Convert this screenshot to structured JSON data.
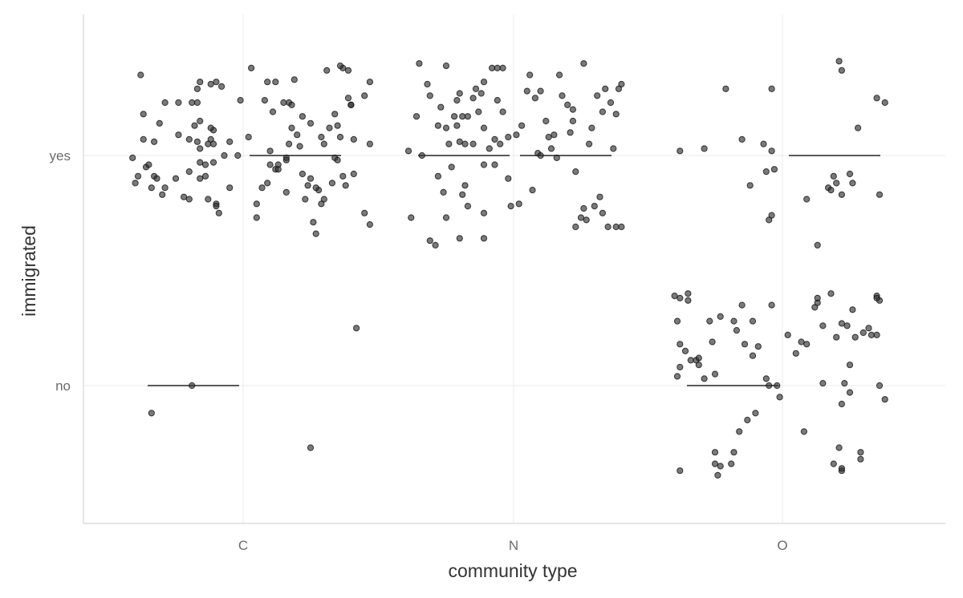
{
  "chart_data": {
    "type": "scatter",
    "subtype": "jittered strip plot with segment markers",
    "title": "",
    "xlabel": "community type",
    "ylabel": "immigrated",
    "categories": [
      "C",
      "N",
      "O"
    ],
    "y_levels": [
      "no",
      "yes"
    ],
    "grid": true,
    "legend": "none",
    "point_color": "#333333",
    "point_opacity": 0.65,
    "line_color": "#222222",
    "segments": [
      {
        "category": "C",
        "y": "no",
        "side": "left"
      },
      {
        "category": "C",
        "y": "yes",
        "side": "right"
      },
      {
        "category": "N",
        "y": "yes",
        "side": "left"
      },
      {
        "category": "N",
        "y": "yes",
        "side": "right"
      },
      {
        "category": "O",
        "y": "no",
        "side": "left"
      },
      {
        "category": "O",
        "y": "yes",
        "side": "right"
      }
    ],
    "points": [
      [
        "C",
        -0.38,
        1.35
      ],
      [
        "C",
        -0.29,
        1.23
      ],
      [
        "C",
        -0.37,
        1.18
      ],
      [
        "C",
        -0.31,
        1.14
      ],
      [
        "C",
        -0.37,
        1.07
      ],
      [
        "C",
        -0.33,
        1.06
      ],
      [
        "C",
        -0.41,
        0.99
      ],
      [
        "C",
        -0.36,
        0.95
      ],
      [
        "C",
        -0.33,
        0.91
      ],
      [
        "C",
        -0.39,
        0.91
      ],
      [
        "C",
        -0.32,
        0.9
      ],
      [
        "C",
        -0.34,
        0.86
      ],
      [
        "C",
        -0.3,
        0.83
      ],
      [
        "C",
        -0.4,
        0.88
      ],
      [
        "C",
        -0.35,
        0.96
      ],
      [
        "C",
        -0.24,
        1.23
      ],
      [
        "C",
        -0.2,
        1.07
      ],
      [
        "C",
        -0.17,
        1.06
      ],
      [
        "C",
        -0.24,
        1.09
      ],
      [
        "C",
        -0.29,
        0.86
      ],
      [
        "C",
        -0.22,
        0.82
      ],
      [
        "C",
        -0.25,
        0.9
      ],
      [
        "C",
        -0.2,
        0.93
      ],
      [
        "C",
        -0.2,
        0.81
      ],
      [
        "C",
        -0.16,
        0.9
      ],
      [
        "C",
        -0.14,
        0.91
      ],
      [
        "C",
        -0.16,
        0.97
      ],
      [
        "C",
        -0.16,
        1.03
      ],
      [
        "C",
        -0.13,
        1.05
      ],
      [
        "C",
        -0.18,
        1.13
      ],
      [
        "C",
        -0.17,
        1.23
      ],
      [
        "C",
        -0.16,
        1.32
      ],
      [
        "C",
        -0.17,
        1.29
      ],
      [
        "C",
        -0.12,
        1.31
      ],
      [
        "C",
        -0.1,
        1.32
      ],
      [
        "C",
        -0.08,
        1.3
      ],
      [
        "C",
        -0.11,
        1.11
      ],
      [
        "C",
        -0.12,
        1.07
      ],
      [
        "C",
        -0.11,
        1.05
      ],
      [
        "C",
        -0.11,
        0.97
      ],
      [
        "C",
        -0.14,
        0.96
      ],
      [
        "C",
        -0.13,
        0.81
      ],
      [
        "C",
        -0.1,
        0.79
      ],
      [
        "C",
        -0.1,
        0.78
      ],
      [
        "C",
        -0.09,
        0.75
      ],
      [
        "C",
        -0.12,
        1.12
      ],
      [
        "C",
        -0.16,
        1.15
      ],
      [
        "C",
        -0.19,
        1.23
      ],
      [
        "C",
        -0.05,
        1.06
      ],
      [
        "C",
        -0.07,
        1.0
      ],
      [
        "C",
        -0.05,
        0.86
      ],
      [
        "C",
        -0.02,
        1.0
      ],
      [
        "C",
        -0.01,
        1.24
      ],
      [
        "C",
        0.02,
        1.08
      ],
      [
        "C",
        0.03,
        1.38
      ],
      [
        "C",
        0.05,
        0.79
      ],
      [
        "C",
        0.05,
        0.73
      ],
      [
        "C",
        0.07,
        0.86
      ],
      [
        "C",
        0.09,
        0.88
      ],
      [
        "C",
        0.1,
        1.02
      ],
      [
        "C",
        0.08,
        1.24
      ],
      [
        "C",
        0.09,
        1.32
      ],
      [
        "C",
        0.12,
        1.32
      ],
      [
        "C",
        0.11,
        1.19
      ],
      [
        "C",
        0.13,
        0.96
      ],
      [
        "C",
        0.12,
        0.94
      ],
      [
        "C",
        0.1,
        0.96
      ],
      [
        "C",
        0.13,
        0.94
      ],
      [
        "C",
        0.15,
        1.23
      ],
      [
        "C",
        0.17,
        1.23
      ],
      [
        "C",
        0.18,
        1.22
      ],
      [
        "C",
        0.16,
        0.99
      ],
      [
        "C",
        0.16,
        0.98
      ],
      [
        "C",
        0.18,
        1.12
      ],
      [
        "C",
        0.17,
        1.05
      ],
      [
        "C",
        0.16,
        0.84
      ],
      [
        "C",
        0.19,
        1.33
      ],
      [
        "C",
        0.2,
        1.09
      ],
      [
        "C",
        0.21,
        1.04
      ],
      [
        "C",
        0.22,
        1.17
      ],
      [
        "C",
        0.22,
        0.92
      ],
      [
        "C",
        0.23,
        0.81
      ],
      [
        "C",
        0.25,
        1.14
      ],
      [
        "C",
        0.26,
        0.71
      ],
      [
        "C",
        0.25,
        0.9
      ],
      [
        "C",
        0.27,
        0.66
      ],
      [
        "C",
        0.28,
        0.85
      ],
      [
        "C",
        0.27,
        0.86
      ],
      [
        "C",
        0.3,
        1.05
      ],
      [
        "C",
        0.29,
        1.08
      ],
      [
        "C",
        0.3,
        0.81
      ],
      [
        "C",
        0.31,
        1.37
      ],
      [
        "C",
        0.32,
        1.12
      ],
      [
        "C",
        0.34,
        0.99
      ],
      [
        "C",
        0.35,
        1.13
      ],
      [
        "C",
        0.35,
        0.98
      ],
      [
        "C",
        0.33,
        0.88
      ],
      [
        "C",
        0.37,
        1.38
      ],
      [
        "C",
        0.36,
        1.39
      ],
      [
        "C",
        0.36,
        1.08
      ],
      [
        "C",
        0.39,
        1.37
      ],
      [
        "C",
        0.39,
        1.25
      ],
      [
        "C",
        0.4,
        1.22
      ],
      [
        "C",
        0.37,
        0.91
      ],
      [
        "C",
        0.4,
        1.22
      ],
      [
        "C",
        0.41,
        1.07
      ],
      [
        "C",
        0.41,
        0.92
      ],
      [
        "C",
        0.45,
        0.75
      ],
      [
        "C",
        0.47,
        0.7
      ],
      [
        "C",
        0.45,
        1.26
      ],
      [
        "C",
        0.47,
        1.05
      ],
      [
        "C",
        0.47,
        1.32
      ],
      [
        "C",
        0.38,
        0.87
      ],
      [
        "C",
        0.29,
        0.79
      ],
      [
        "C",
        0.34,
        1.18
      ],
      [
        "C",
        0.24,
        0.87
      ],
      [
        "C",
        0.42,
        0.25
      ],
      [
        "C",
        0.25,
        -0.27
      ],
      [
        "C",
        -0.34,
        -0.12
      ],
      [
        "C",
        -0.19,
        0.0
      ],
      [
        "N",
        -0.39,
        1.02
      ],
      [
        "N",
        -0.38,
        0.73
      ],
      [
        "N",
        -0.36,
        1.17
      ],
      [
        "N",
        -0.35,
        1.4
      ],
      [
        "N",
        -0.34,
        1.0
      ],
      [
        "N",
        -0.32,
        1.31
      ],
      [
        "N",
        -0.31,
        1.26
      ],
      [
        "N",
        -0.31,
        0.63
      ],
      [
        "N",
        -0.29,
        0.61
      ],
      [
        "N",
        -0.28,
        0.91
      ],
      [
        "N",
        -0.27,
        1.21
      ],
      [
        "N",
        -0.26,
        0.84
      ],
      [
        "N",
        -0.25,
        1.12
      ],
      [
        "N",
        -0.25,
        0.73
      ],
      [
        "N",
        -0.25,
        1.39
      ],
      [
        "N",
        -0.24,
        1.05
      ],
      [
        "N",
        -0.23,
        0.95
      ],
      [
        "N",
        -0.22,
        1.17
      ],
      [
        "N",
        -0.21,
        1.13
      ],
      [
        "N",
        -0.21,
        1.24
      ],
      [
        "N",
        -0.2,
        1.06
      ],
      [
        "N",
        -0.2,
        1.27
      ],
      [
        "N",
        -0.19,
        1.17
      ],
      [
        "N",
        -0.18,
        1.05
      ],
      [
        "N",
        -0.19,
        0.83
      ],
      [
        "N",
        -0.18,
        0.87
      ],
      [
        "N",
        -0.2,
        0.64
      ],
      [
        "N",
        -0.17,
        0.78
      ],
      [
        "N",
        -0.17,
        1.17
      ],
      [
        "N",
        -0.15,
        1.05
      ],
      [
        "N",
        -0.15,
        1.25
      ],
      [
        "N",
        -0.14,
        1.29
      ],
      [
        "N",
        -0.13,
        1.19
      ],
      [
        "N",
        -0.12,
        1.27
      ],
      [
        "N",
        -0.11,
        1.12
      ],
      [
        "N",
        -0.11,
        0.96
      ],
      [
        "N",
        -0.11,
        1.32
      ],
      [
        "N",
        -0.11,
        0.75
      ],
      [
        "N",
        -0.11,
        0.64
      ],
      [
        "N",
        -0.09,
        1.03
      ],
      [
        "N",
        -0.08,
        1.38
      ],
      [
        "N",
        -0.07,
        1.07
      ],
      [
        "N",
        -0.07,
        0.96
      ],
      [
        "N",
        -0.06,
        1.24
      ],
      [
        "N",
        -0.06,
        1.38
      ],
      [
        "N",
        -0.04,
        1.38
      ],
      [
        "N",
        -0.04,
        1.19
      ],
      [
        "N",
        -0.02,
        1.08
      ],
      [
        "N",
        -0.02,
        0.9
      ],
      [
        "N",
        -0.01,
        0.78
      ],
      [
        "N",
        0.01,
        1.09
      ],
      [
        "N",
        0.03,
        1.13
      ],
      [
        "N",
        0.05,
        1.28
      ],
      [
        "N",
        0.06,
        1.35
      ],
      [
        "N",
        0.07,
        0.85
      ],
      [
        "N",
        0.08,
        1.25
      ],
      [
        "N",
        0.09,
        1.01
      ],
      [
        "N",
        0.1,
        1.0
      ],
      [
        "N",
        0.12,
        1.15
      ],
      [
        "N",
        0.13,
        1.08
      ],
      [
        "N",
        0.14,
        1.03
      ],
      [
        "N",
        0.16,
        0.99
      ],
      [
        "N",
        0.17,
        1.35
      ],
      [
        "N",
        0.2,
        1.22
      ],
      [
        "N",
        0.21,
        1.1
      ],
      [
        "N",
        0.22,
        1.2
      ],
      [
        "N",
        0.23,
        0.93
      ],
      [
        "N",
        0.23,
        0.69
      ],
      [
        "N",
        0.25,
        0.73
      ],
      [
        "N",
        0.26,
        0.77
      ],
      [
        "N",
        0.27,
        0.72
      ],
      [
        "N",
        0.28,
        1.05
      ],
      [
        "N",
        0.29,
        1.12
      ],
      [
        "N",
        0.3,
        0.78
      ],
      [
        "N",
        0.31,
        1.26
      ],
      [
        "N",
        0.32,
        0.82
      ],
      [
        "N",
        0.33,
        1.19
      ],
      [
        "N",
        0.34,
        1.29
      ],
      [
        "N",
        0.35,
        0.69
      ],
      [
        "N",
        0.36,
        1.23
      ],
      [
        "N",
        0.37,
        1.03
      ],
      [
        "N",
        0.38,
        0.69
      ],
      [
        "N",
        0.39,
        1.29
      ],
      [
        "N",
        0.4,
        1.31
      ],
      [
        "N",
        0.4,
        0.69
      ],
      [
        "N",
        0.38,
        1.18
      ],
      [
        "N",
        0.26,
        1.4
      ],
      [
        "N",
        0.02,
        0.79
      ],
      [
        "N",
        0.15,
        1.09
      ],
      [
        "N",
        -0.05,
        1.05
      ],
      [
        "N",
        0.18,
        1.26
      ],
      [
        "N",
        -0.28,
        1.13
      ],
      [
        "N",
        0.1,
        1.28
      ],
      [
        "N",
        0.22,
        1.15
      ],
      [
        "N",
        0.33,
        0.75
      ],
      [
        "O",
        -0.38,
        1.02
      ],
      [
        "O",
        -0.29,
        1.03
      ],
      [
        "O",
        -0.21,
        1.29
      ],
      [
        "O",
        -0.15,
        1.07
      ],
      [
        "O",
        -0.12,
        0.87
      ],
      [
        "O",
        -0.07,
        1.05
      ],
      [
        "O",
        -0.06,
        0.93
      ],
      [
        "O",
        -0.05,
        0.72
      ],
      [
        "O",
        -0.04,
        0.74
      ],
      [
        "O",
        -0.04,
        1.29
      ],
      [
        "O",
        -0.03,
        0.94
      ],
      [
        "O",
        -0.04,
        1.02
      ],
      [
        "O",
        0.09,
        0.81
      ],
      [
        "O",
        0.13,
        0.61
      ],
      [
        "O",
        0.17,
        0.86
      ],
      [
        "O",
        0.18,
        0.85
      ],
      [
        "O",
        0.19,
        0.91
      ],
      [
        "O",
        0.2,
        0.88
      ],
      [
        "O",
        0.22,
        0.83
      ],
      [
        "O",
        0.26,
        0.88
      ],
      [
        "O",
        0.28,
        1.12
      ],
      [
        "O",
        0.22,
        1.37
      ],
      [
        "O",
        0.21,
        1.41
      ],
      [
        "O",
        0.35,
        1.25
      ],
      [
        "O",
        0.36,
        0.83
      ],
      [
        "O",
        0.38,
        1.23
      ],
      [
        "O",
        0.25,
        0.92
      ],
      [
        "O",
        -0.4,
        0.39
      ],
      [
        "O",
        -0.38,
        0.38
      ],
      [
        "O",
        -0.35,
        0.4
      ],
      [
        "O",
        -0.35,
        0.37
      ],
      [
        "O",
        -0.39,
        0.28
      ],
      [
        "O",
        -0.38,
        0.18
      ],
      [
        "O",
        -0.36,
        0.15
      ],
      [
        "O",
        -0.34,
        0.11
      ],
      [
        "O",
        -0.39,
        0.04
      ],
      [
        "O",
        -0.38,
        0.08
      ],
      [
        "O",
        -0.32,
        0.11
      ],
      [
        "O",
        -0.31,
        0.12
      ],
      [
        "O",
        -0.31,
        0.09
      ],
      [
        "O",
        -0.29,
        0.03
      ],
      [
        "O",
        -0.27,
        0.28
      ],
      [
        "O",
        -0.26,
        0.19
      ],
      [
        "O",
        -0.25,
        0.05
      ],
      [
        "O",
        -0.23,
        0.3
      ],
      [
        "O",
        -0.18,
        0.28
      ],
      [
        "O",
        -0.17,
        0.24
      ],
      [
        "O",
        -0.15,
        0.35
      ],
      [
        "O",
        -0.14,
        0.18
      ],
      [
        "O",
        -0.11,
        0.13
      ],
      [
        "O",
        -0.11,
        0.28
      ],
      [
        "O",
        -0.09,
        0.17
      ],
      [
        "O",
        -0.06,
        0.03
      ],
      [
        "O",
        -0.04,
        0.35
      ],
      [
        "O",
        -0.05,
        0.0
      ],
      [
        "O",
        -0.02,
        0.0
      ],
      [
        "O",
        0.02,
        0.22
      ],
      [
        "O",
        0.05,
        0.14
      ],
      [
        "O",
        0.07,
        0.19
      ],
      [
        "O",
        0.09,
        0.18
      ],
      [
        "O",
        0.12,
        0.34
      ],
      [
        "O",
        0.13,
        0.36
      ],
      [
        "O",
        0.13,
        0.38
      ],
      [
        "O",
        0.15,
        0.01
      ],
      [
        "O",
        0.15,
        0.26
      ],
      [
        "O",
        0.18,
        0.4
      ],
      [
        "O",
        0.2,
        0.21
      ],
      [
        "O",
        0.22,
        0.27
      ],
      [
        "O",
        0.23,
        0.01
      ],
      [
        "O",
        0.24,
        0.26
      ],
      [
        "O",
        0.25,
        0.09
      ],
      [
        "O",
        0.26,
        0.33
      ],
      [
        "O",
        0.27,
        0.21
      ],
      [
        "O",
        0.3,
        0.23
      ],
      [
        "O",
        0.32,
        0.25
      ],
      [
        "O",
        0.33,
        0.22
      ],
      [
        "O",
        0.35,
        0.39
      ],
      [
        "O",
        0.36,
        0.37
      ],
      [
        "O",
        0.35,
        0.38
      ],
      [
        "O",
        0.36,
        0.0
      ],
      [
        "O",
        0.38,
        -0.06
      ],
      [
        "O",
        0.35,
        0.22
      ],
      [
        "O",
        -0.01,
        -0.05
      ],
      [
        "O",
        -0.1,
        -0.12
      ],
      [
        "O",
        -0.13,
        -0.15
      ],
      [
        "O",
        -0.16,
        -0.2
      ],
      [
        "O",
        -0.18,
        -0.29
      ],
      [
        "O",
        -0.19,
        -0.34
      ],
      [
        "O",
        -0.25,
        -0.29
      ],
      [
        "O",
        -0.25,
        -0.34
      ],
      [
        "O",
        -0.23,
        -0.35
      ],
      [
        "O",
        -0.24,
        -0.39
      ],
      [
        "O",
        -0.38,
        -0.37
      ],
      [
        "O",
        0.08,
        -0.2
      ],
      [
        "O",
        0.22,
        -0.08
      ],
      [
        "O",
        0.21,
        -0.27
      ],
      [
        "O",
        0.19,
        -0.34
      ],
      [
        "O",
        0.22,
        -0.37
      ],
      [
        "O",
        0.22,
        -0.36
      ],
      [
        "O",
        0.29,
        -0.32
      ],
      [
        "O",
        0.29,
        -0.29
      ],
      [
        "O",
        0.25,
        -0.03
      ]
    ]
  }
}
